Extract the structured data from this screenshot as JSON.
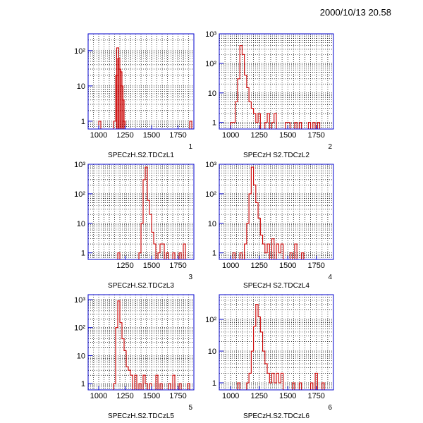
{
  "header": {
    "timestamp": "2000/10/13   20.58"
  },
  "colors": {
    "frame": "#0000cc",
    "histogram": "#cc0000",
    "grid": "#000000",
    "text": "#000000"
  },
  "chart_data": [
    {
      "type": "histogram",
      "title": "SPECzH.S2.TDCzL1",
      "pad_number": "1",
      "xlim": [
        900,
        1900
      ],
      "xticks": [
        1000,
        1250,
        1500,
        1750
      ],
      "yscale": "log",
      "ylim": [
        0.6,
        300
      ],
      "yticks": [
        1,
        10,
        100
      ],
      "ytick_labels": [
        "1",
        "10",
        "10²"
      ],
      "bin_width": 20,
      "grid": true,
      "bins": [
        [
          1000,
          1
        ],
        [
          1140,
          1
        ],
        [
          1160,
          20
        ],
        [
          1170,
          120
        ],
        [
          1180,
          60
        ],
        [
          1190,
          30
        ],
        [
          1200,
          25
        ],
        [
          1210,
          10
        ],
        [
          1220,
          4
        ],
        [
          1230,
          1
        ],
        [
          1860,
          1
        ]
      ]
    },
    {
      "type": "histogram",
      "title": "SPECzH S2.TDCzL2",
      "pad_number": "2",
      "xlim": [
        900,
        1900
      ],
      "xticks": [
        1000,
        1250,
        1500,
        1750
      ],
      "yscale": "log",
      "ylim": [
        0.6,
        1000
      ],
      "yticks": [
        1,
        10,
        100,
        1000
      ],
      "ytick_labels": [
        "1",
        "10",
        "10²",
        "10³"
      ],
      "bin_width": 20,
      "grid": true,
      "bins": [
        [
          1000,
          1
        ],
        [
          1020,
          1
        ],
        [
          1040,
          5
        ],
        [
          1060,
          30
        ],
        [
          1080,
          400
        ],
        [
          1100,
          200
        ],
        [
          1120,
          40
        ],
        [
          1140,
          15
        ],
        [
          1160,
          5
        ],
        [
          1180,
          3
        ],
        [
          1200,
          2
        ],
        [
          1220,
          1
        ],
        [
          1240,
          2
        ],
        [
          1300,
          1
        ],
        [
          1320,
          2
        ],
        [
          1360,
          1
        ],
        [
          1380,
          2
        ],
        [
          1480,
          1
        ],
        [
          1500,
          1
        ],
        [
          1560,
          1
        ],
        [
          1600,
          1
        ],
        [
          1680,
          1
        ],
        [
          1720,
          1
        ],
        [
          1760,
          1
        ]
      ]
    },
    {
      "type": "histogram",
      "title": "SPECzH.S2.TDCzL3",
      "pad_number": "3",
      "xlim": [
        900,
        1900
      ],
      "xticks": [
        1250,
        1500,
        1750
      ],
      "yscale": "log",
      "ylim": [
        0.6,
        1000
      ],
      "yticks": [
        1,
        10,
        100,
        1000
      ],
      "ytick_labels": [
        "1",
        "10",
        "10²",
        "10³"
      ],
      "bin_width": 20,
      "grid": true,
      "bins": [
        [
          1180,
          1
        ],
        [
          1380,
          1
        ],
        [
          1400,
          10
        ],
        [
          1420,
          300
        ],
        [
          1440,
          800
        ],
        [
          1460,
          60
        ],
        [
          1480,
          20
        ],
        [
          1500,
          5
        ],
        [
          1520,
          2
        ],
        [
          1560,
          1
        ],
        [
          1580,
          2
        ],
        [
          1600,
          2
        ],
        [
          1640,
          1
        ],
        [
          1700,
          1
        ],
        [
          1760,
          1
        ],
        [
          1800,
          2
        ]
      ]
    },
    {
      "type": "histogram",
      "title": "SPECzH S2.TDCzL4",
      "pad_number": "4",
      "xlim": [
        900,
        1900
      ],
      "xticks": [
        1000,
        1250,
        1500,
        1750
      ],
      "yscale": "log",
      "ylim": [
        0.6,
        1000
      ],
      "yticks": [
        1,
        10,
        100,
        1000
      ],
      "ytick_labels": [
        "1",
        "10",
        "10²",
        "10³"
      ],
      "bin_width": 20,
      "grid": true,
      "bins": [
        [
          1020,
          1
        ],
        [
          1080,
          1
        ],
        [
          1120,
          2
        ],
        [
          1140,
          10
        ],
        [
          1160,
          100
        ],
        [
          1180,
          800
        ],
        [
          1200,
          200
        ],
        [
          1220,
          50
        ],
        [
          1240,
          15
        ],
        [
          1260,
          4
        ],
        [
          1280,
          2
        ],
        [
          1300,
          1
        ],
        [
          1320,
          2
        ],
        [
          1360,
          3
        ],
        [
          1400,
          2
        ],
        [
          1420,
          1
        ],
        [
          1440,
          2
        ],
        [
          1520,
          1
        ],
        [
          1560,
          2
        ],
        [
          1620,
          1
        ]
      ]
    },
    {
      "type": "histogram",
      "title": "SPECzH.S2.TDCzL5",
      "pad_number": "5",
      "xlim": [
        900,
        1900
      ],
      "xticks": [
        1000,
        1250,
        1500,
        1750
      ],
      "yscale": "log",
      "ylim": [
        0.6,
        1500
      ],
      "yticks": [
        1,
        10,
        100,
        1000
      ],
      "ytick_labels": [
        "1",
        "10",
        "10²",
        "10³"
      ],
      "bin_width": 20,
      "grid": true,
      "bins": [
        [
          1140,
          1
        ],
        [
          1160,
          100
        ],
        [
          1180,
          900
        ],
        [
          1200,
          150
        ],
        [
          1220,
          40
        ],
        [
          1240,
          15
        ],
        [
          1260,
          4
        ],
        [
          1280,
          3
        ],
        [
          1300,
          2
        ],
        [
          1340,
          2
        ],
        [
          1380,
          1
        ],
        [
          1420,
          2
        ],
        [
          1440,
          1
        ],
        [
          1480,
          1
        ],
        [
          1540,
          2
        ],
        [
          1580,
          1
        ],
        [
          1660,
          1
        ],
        [
          1700,
          2
        ],
        [
          1760,
          1
        ],
        [
          1840,
          1
        ]
      ]
    },
    {
      "type": "histogram",
      "title": "SPECzH.S2.TDCzL6",
      "pad_number": "6",
      "xlim": [
        900,
        1900
      ],
      "xticks": [
        1000,
        1250,
        1500,
        1750
      ],
      "yscale": "log",
      "ylim": [
        0.6,
        600
      ],
      "yticks": [
        1,
        10,
        100
      ],
      "ytick_labels": [
        "1",
        "10",
        "10²"
      ],
      "bin_width": 20,
      "grid": true,
      "bins": [
        [
          1060,
          1
        ],
        [
          1140,
          1
        ],
        [
          1160,
          2
        ],
        [
          1180,
          10
        ],
        [
          1200,
          60
        ],
        [
          1220,
          300
        ],
        [
          1240,
          120
        ],
        [
          1260,
          40
        ],
        [
          1280,
          10
        ],
        [
          1300,
          4
        ],
        [
          1320,
          2
        ],
        [
          1340,
          1
        ],
        [
          1360,
          2
        ],
        [
          1380,
          1
        ],
        [
          1400,
          2
        ],
        [
          1420,
          1
        ],
        [
          1440,
          2
        ],
        [
          1540,
          1
        ],
        [
          1600,
          1
        ],
        [
          1700,
          1
        ],
        [
          1740,
          2
        ],
        [
          1800,
          1
        ]
      ]
    }
  ]
}
